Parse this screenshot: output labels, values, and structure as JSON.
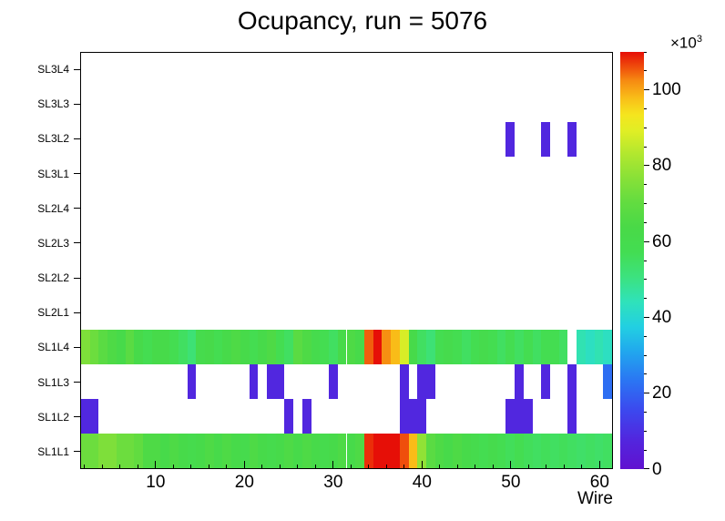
{
  "chart_data": {
    "type": "heatmap",
    "title": "Ocupancy, run = 5076",
    "xlabel": "Wire",
    "x_ticks": [
      10,
      20,
      30,
      40,
      50,
      60
    ],
    "x_axis_range": [
      1.5,
      61.5
    ],
    "x_wire_min": 2,
    "x_wire_max": 61,
    "value_units": "counts x 10^3",
    "grid": false,
    "y_categories_top_to_bottom": [
      "SL3L4",
      "SL3L3",
      "SL3L2",
      "SL3L1",
      "SL2L4",
      "SL2L3",
      "SL2L2",
      "SL2L1",
      "SL1L4",
      "SL1L3",
      "SL1L2",
      "SL1L1"
    ],
    "colorbar": {
      "ticks": [
        0,
        20,
        40,
        60,
        80,
        100
      ],
      "minor_tick_step": 5,
      "scale_base": "×10",
      "scale_exponent": "3",
      "vmin": 0,
      "vmax": 110,
      "stops": [
        [
          0.0,
          "#6012d0"
        ],
        [
          0.07,
          "#5226de"
        ],
        [
          0.14,
          "#3c48ee"
        ],
        [
          0.21,
          "#2b74f3"
        ],
        [
          0.28,
          "#21a6ee"
        ],
        [
          0.34,
          "#22cfe2"
        ],
        [
          0.4,
          "#2fe2bb"
        ],
        [
          0.46,
          "#3ce27f"
        ],
        [
          0.52,
          "#43dd52"
        ],
        [
          0.58,
          "#49d947"
        ],
        [
          0.64,
          "#63dc40"
        ],
        [
          0.7,
          "#8ae137"
        ],
        [
          0.76,
          "#b5e82e"
        ],
        [
          0.81,
          "#e0ee25"
        ],
        [
          0.85,
          "#f5e51e"
        ],
        [
          0.89,
          "#f9bd18"
        ],
        [
          0.93,
          "#f68c12"
        ],
        [
          0.96,
          "#f0540c"
        ],
        [
          1.0,
          "#e60f07"
        ]
      ]
    },
    "rows": [
      {
        "label": "SL3L4",
        "cells": {}
      },
      {
        "label": "SL3L3",
        "cells": {}
      },
      {
        "label": "SL3L2",
        "cells": {
          "50": 8,
          "54": 8,
          "57": 8
        }
      },
      {
        "label": "SL3L1",
        "cells": {}
      },
      {
        "label": "SL2L4",
        "cells": {}
      },
      {
        "label": "SL2L3",
        "cells": {}
      },
      {
        "label": "SL2L2",
        "cells": {}
      },
      {
        "label": "SL2L1",
        "cells": {}
      },
      {
        "label": "SL1L4",
        "cells": {
          "2": 75,
          "3": 72,
          "4": 68,
          "5": 65,
          "6": 62,
          "7": 68,
          "8": 62,
          "9": 58,
          "10": 62,
          "11": 62,
          "12": 58,
          "13": 55,
          "14": 52,
          "15": 60,
          "16": 62,
          "17": 58,
          "18": 62,
          "19": 65,
          "20": 62,
          "21": 58,
          "22": 62,
          "23": 65,
          "24": 58,
          "25": 55,
          "26": 68,
          "27": 65,
          "28": 60,
          "29": 58,
          "30": 55,
          "31": 62,
          "32": 65,
          "33": 62,
          "34": 105,
          "35": 110,
          "36": 102,
          "37": 98,
          "38": 88,
          "39": 62,
          "40": 55,
          "41": 52,
          "42": 58,
          "43": 60,
          "44": 58,
          "45": 55,
          "46": 58,
          "47": 60,
          "48": 58,
          "49": 55,
          "50": 58,
          "51": 55,
          "52": 58,
          "53": 55,
          "54": 58,
          "55": 58,
          "56": 55,
          "58": 45,
          "59": 43,
          "60": 45,
          "61": 43
        }
      },
      {
        "label": "SL1L3",
        "cells": {
          "14": 8,
          "21": 8,
          "23": 8,
          "24": 8,
          "30": 8,
          "38": 8,
          "40": 8,
          "41": 8,
          "51": 8,
          "54": 8,
          "57": 8,
          "61": 22
        }
      },
      {
        "label": "SL1L2",
        "cells": {
          "2": 8,
          "3": 8,
          "25": 8,
          "27": 8,
          "38": 8,
          "39": 8,
          "40": 8,
          "50": 8,
          "51": 8,
          "52": 8,
          "57": 8
        }
      },
      {
        "label": "SL1L1",
        "cells": {
          "2": 72,
          "3": 72,
          "4": 75,
          "5": 75,
          "6": 72,
          "7": 72,
          "8": 70,
          "9": 65,
          "10": 65,
          "11": 62,
          "12": 65,
          "13": 62,
          "14": 60,
          "15": 62,
          "16": 65,
          "17": 62,
          "18": 65,
          "19": 62,
          "20": 60,
          "21": 65,
          "22": 62,
          "23": 60,
          "24": 62,
          "25": 65,
          "26": 62,
          "27": 65,
          "28": 62,
          "29": 60,
          "30": 62,
          "31": 65,
          "32": 62,
          "33": 65,
          "34": 108,
          "35": 112,
          "36": 112,
          "37": 110,
          "38": 106,
          "39": 98,
          "40": 78,
          "41": 68,
          "42": 65,
          "43": 62,
          "44": 65,
          "45": 62,
          "46": 60,
          "47": 58,
          "48": 60,
          "49": 58,
          "50": 56,
          "51": 58,
          "52": 56,
          "53": 55,
          "54": 56,
          "55": 55,
          "56": 56,
          "57": 55,
          "58": 54,
          "59": 55,
          "60": 54,
          "61": 55
        }
      }
    ]
  }
}
